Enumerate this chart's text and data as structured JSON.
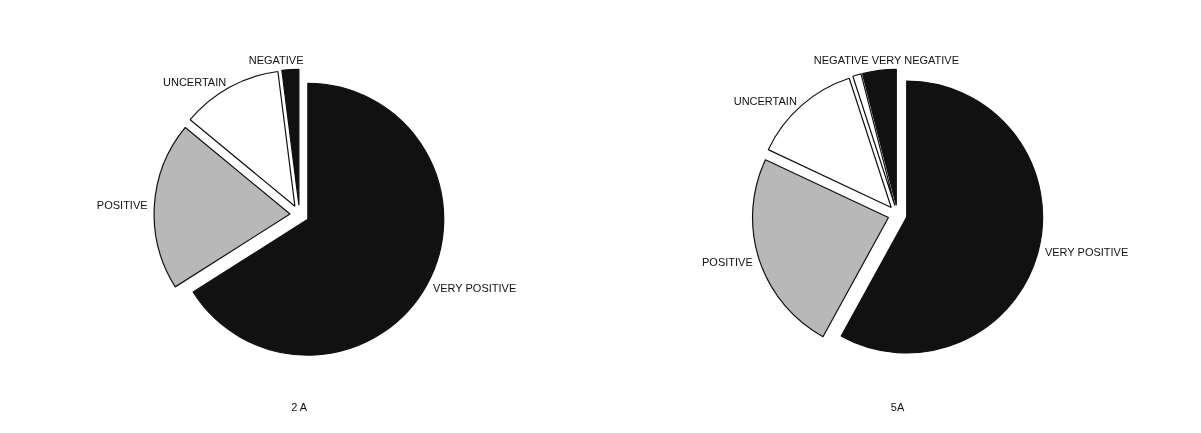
{
  "chart_data": [
    {
      "type": "pie",
      "title": "2 A",
      "categories": [
        "VERY POSITIVE",
        "POSITIVE",
        "UNCERTAIN",
        "NEGATIVE"
      ],
      "values": [
        66,
        20,
        12,
        2
      ],
      "colors": [
        "#111111",
        "#b8b8b8",
        "#ffffff",
        "#111111"
      ]
    },
    {
      "type": "pie",
      "title": "5A",
      "categories": [
        "VERY POSITIVE",
        "POSITIVE",
        "UNCERTAIN",
        "NEGATIVE",
        "VERY NEGATIVE"
      ],
      "values": [
        58,
        24,
        13,
        1,
        4
      ],
      "colors": [
        "#111111",
        "#b8b8b8",
        "#ffffff",
        "#ffffff",
        "#111111"
      ]
    }
  ]
}
